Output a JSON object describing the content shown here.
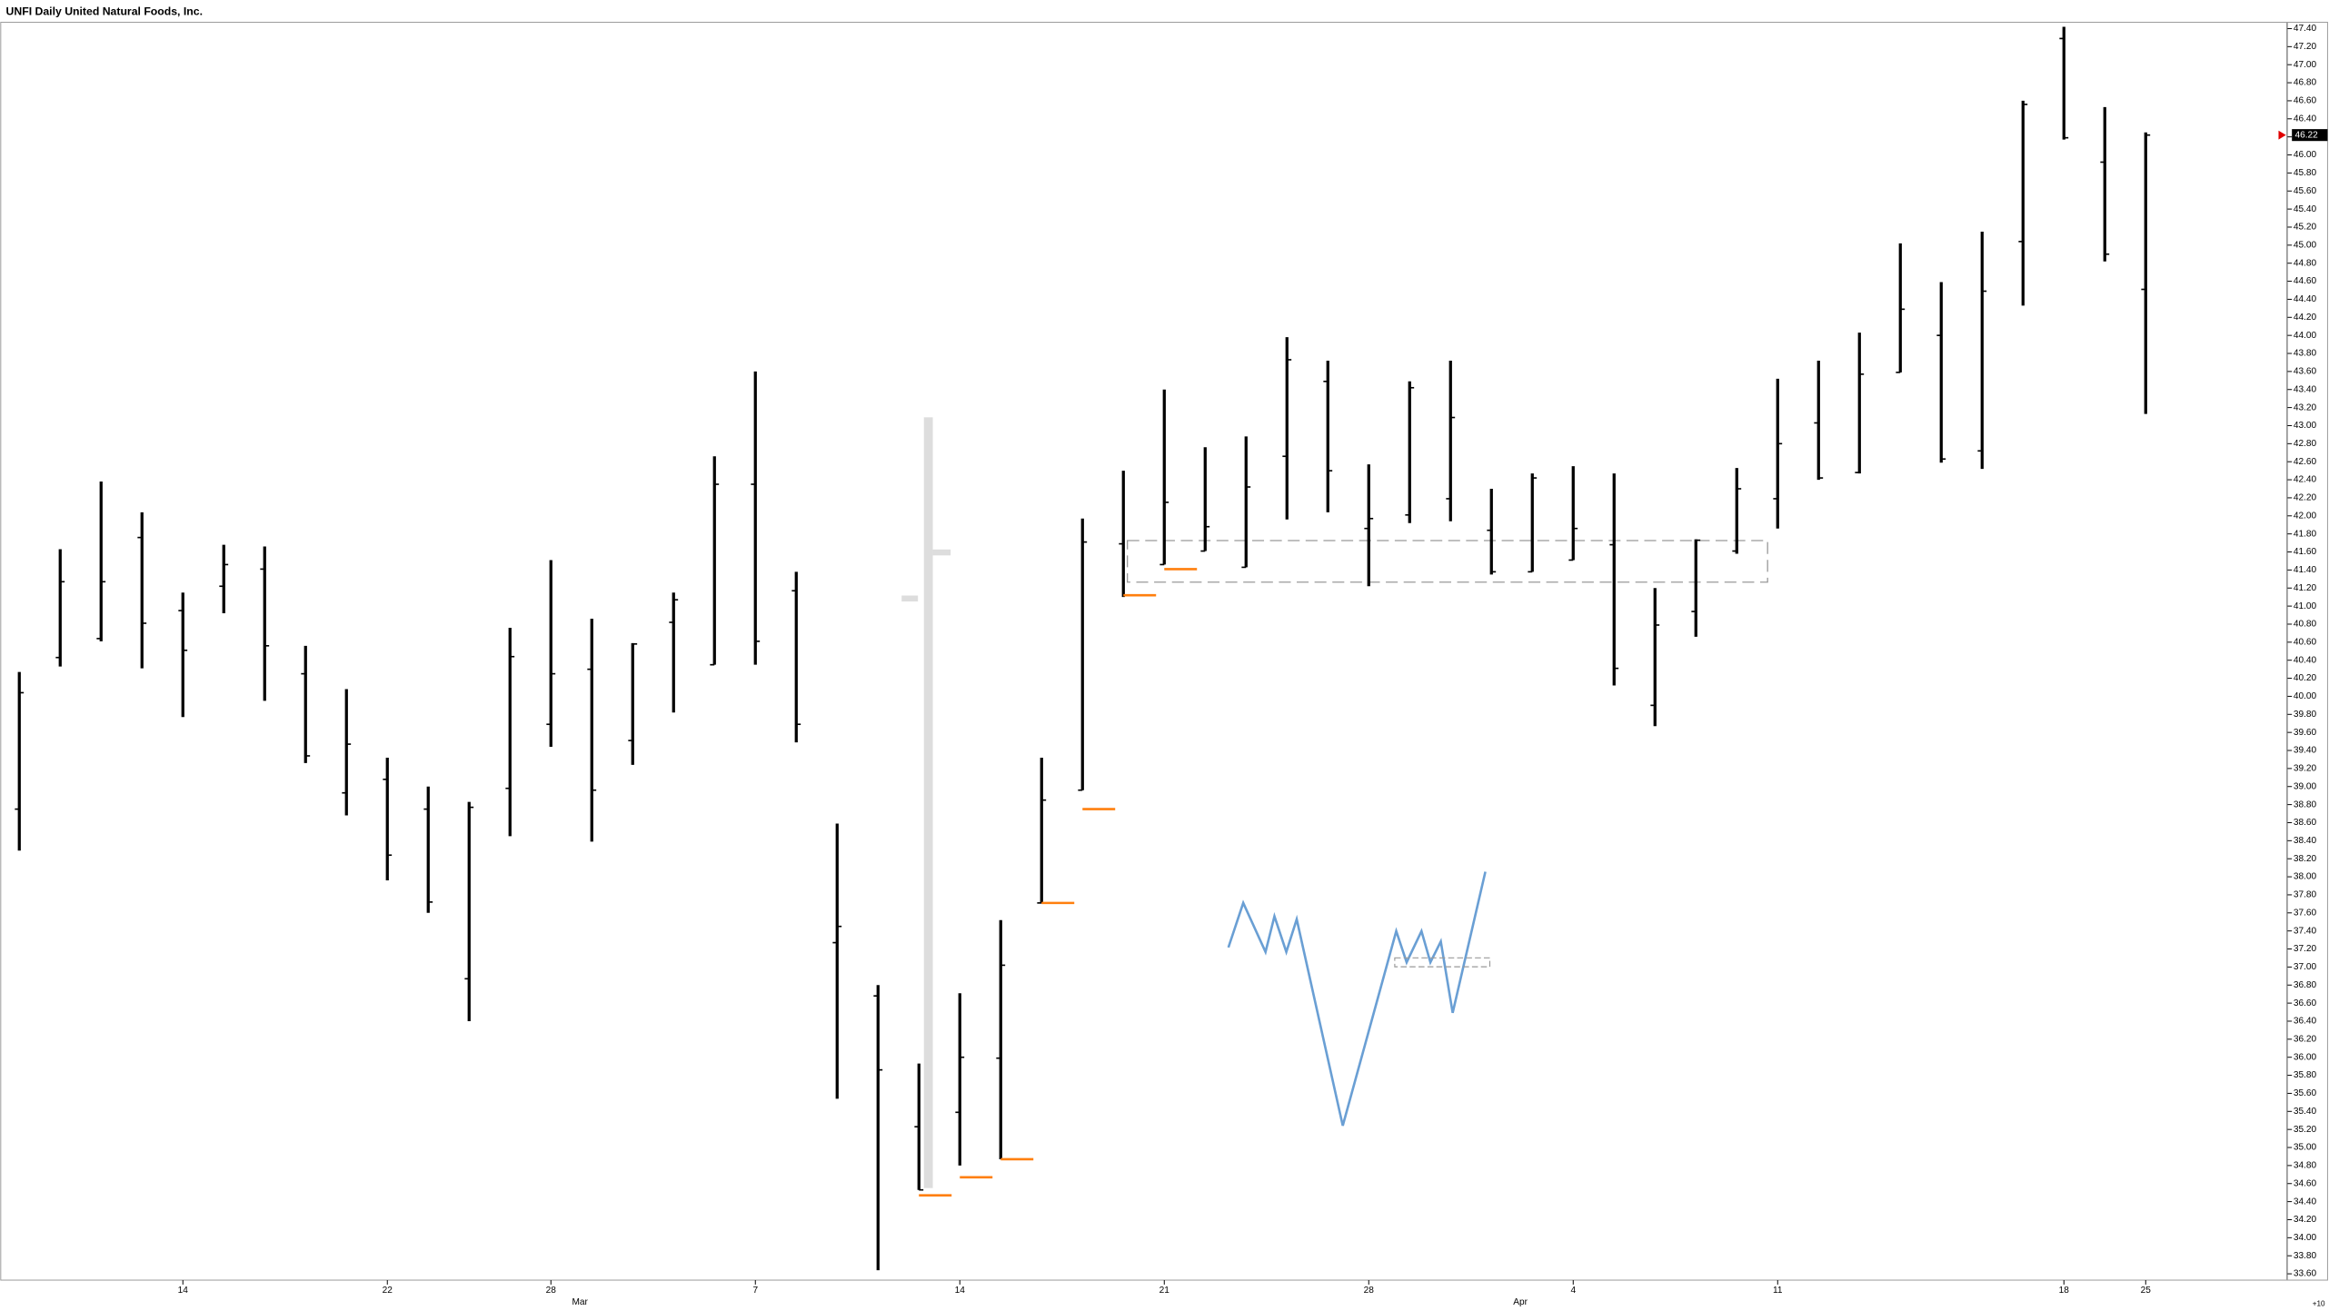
{
  "chart_data": {
    "type": "ohlc",
    "title": "UNFI Daily United Natural Foods, Inc.",
    "categories": [
      null,
      null,
      null,
      null,
      "14",
      null,
      null,
      null,
      null,
      "22",
      null,
      null,
      null,
      "28",
      null,
      null,
      null,
      null,
      "7",
      null,
      null,
      null,
      null,
      "14",
      null,
      null,
      null,
      null,
      "21",
      null,
      null,
      null,
      null,
      "28",
      null,
      null,
      null,
      null,
      "4",
      null,
      null,
      null,
      null,
      "11",
      null,
      null,
      null,
      null,
      null,
      null,
      "18",
      null,
      "25"
    ],
    "months": [
      null,
      null,
      null,
      null,
      null,
      null,
      null,
      null,
      null,
      null,
      null,
      null,
      null,
      null,
      "Mar",
      null,
      null,
      null,
      null,
      null,
      null,
      null,
      null,
      null,
      null,
      null,
      null,
      null,
      null,
      null,
      null,
      null,
      null,
      null,
      null,
      null,
      null,
      "Apr",
      null,
      null,
      null,
      null,
      null,
      null,
      null,
      null,
      null,
      null,
      null,
      null,
      null,
      null,
      null
    ],
    "open": [
      38.75,
      40.43,
      40.64,
      41.76,
      40.95,
      41.22,
      41.41,
      40.25,
      38.93,
      39.08,
      38.75,
      36.87,
      38.98,
      39.69,
      40.3,
      39.51,
      40.82,
      40.35,
      42.35,
      41.17,
      37.27,
      36.68,
      35.23,
      35.39,
      35.99,
      37.71,
      38.96,
      41.69,
      41.46,
      41.61,
      41.43,
      42.66,
      43.49,
      41.86,
      42.01,
      42.19,
      41.84,
      41.38,
      41.51,
      41.68,
      39.9,
      40.94,
      41.61,
      42.19,
      43.03,
      42.48,
      43.59,
      44.0,
      42.72,
      45.04,
      47.29,
      45.92,
      44.51
    ],
    "high": [
      40.27,
      41.63,
      42.38,
      42.04,
      41.15,
      41.68,
      41.66,
      40.56,
      40.08,
      39.32,
      39.0,
      38.83,
      40.76,
      41.51,
      40.86,
      40.59,
      41.15,
      42.66,
      43.6,
      41.38,
      38.59,
      36.8,
      35.93,
      36.71,
      37.52,
      39.32,
      41.97,
      42.5,
      43.4,
      42.76,
      42.88,
      43.98,
      43.72,
      42.57,
      43.49,
      43.72,
      42.3,
      42.47,
      42.55,
      42.47,
      41.2,
      41.74,
      42.53,
      43.52,
      43.72,
      44.03,
      45.02,
      44.59,
      45.15,
      46.6,
      47.42,
      46.53,
      46.25
    ],
    "low": [
      38.29,
      40.33,
      40.61,
      40.31,
      39.77,
      40.92,
      39.95,
      39.26,
      38.68,
      37.96,
      37.6,
      36.4,
      38.45,
      39.44,
      38.39,
      39.24,
      39.82,
      40.35,
      40.35,
      39.49,
      35.54,
      33.64,
      34.53,
      34.8,
      34.87,
      37.71,
      38.96,
      41.1,
      41.46,
      41.61,
      41.43,
      41.96,
      42.04,
      41.22,
      41.92,
      41.94,
      41.35,
      41.38,
      41.51,
      40.12,
      39.67,
      40.66,
      41.58,
      41.86,
      42.4,
      42.47,
      43.59,
      42.59,
      42.52,
      44.33,
      46.17,
      44.82,
      43.13
    ],
    "close": [
      40.04,
      41.27,
      41.27,
      40.81,
      40.51,
      41.46,
      40.56,
      39.34,
      39.47,
      38.24,
      37.72,
      38.77,
      40.44,
      40.25,
      38.96,
      40.58,
      41.07,
      42.35,
      40.61,
      39.69,
      37.45,
      35.86,
      34.53,
      36.0,
      37.02,
      38.85,
      41.71,
      41.12,
      42.15,
      41.88,
      42.32,
      43.73,
      42.5,
      41.97,
      43.42,
      43.09,
      41.38,
      42.42,
      41.86,
      40.31,
      40.79,
      41.73,
      42.3,
      42.8,
      42.42,
      43.57,
      44.29,
      42.63,
      44.49,
      46.56,
      46.19,
      44.9,
      46.22
    ],
    "low_markers": [
      null,
      null,
      null,
      null,
      null,
      null,
      null,
      null,
      null,
      null,
      null,
      null,
      null,
      null,
      null,
      null,
      null,
      null,
      null,
      null,
      null,
      null,
      34.47,
      34.67,
      34.87,
      37.71,
      38.75,
      41.12,
      41.41,
      null,
      null,
      null,
      null,
      null,
      null,
      null,
      null,
      null,
      null,
      null,
      null,
      null,
      null,
      null,
      null,
      null,
      null,
      null,
      null,
      null,
      null,
      null,
      null
    ],
    "color": "#000000",
    "marker_color": "#ff7f0e",
    "last": {
      "value": 46.22,
      "label": "46.22"
    },
    "x_note": "+10",
    "ylim": [
      33.53,
      47.47
    ],
    "yticks": [
      {
        "value": 33.6,
        "label": "33.60"
      },
      {
        "value": 33.8,
        "label": "33.80"
      },
      {
        "value": 34.0,
        "label": "34.00"
      },
      {
        "value": 34.2,
        "label": "34.20"
      },
      {
        "value": 34.4,
        "label": "34.40"
      },
      {
        "value": 34.6,
        "label": "34.60"
      },
      {
        "value": 34.8,
        "label": "34.80"
      },
      {
        "value": 35.0,
        "label": "35.00"
      },
      {
        "value": 35.2,
        "label": "35.20"
      },
      {
        "value": 35.4,
        "label": "35.40"
      },
      {
        "value": 35.6,
        "label": "35.60"
      },
      {
        "value": 35.8,
        "label": "35.80"
      },
      {
        "value": 36.0,
        "label": "36.00"
      },
      {
        "value": 36.2,
        "label": "36.20"
      },
      {
        "value": 36.4,
        "label": "36.40"
      },
      {
        "value": 36.6,
        "label": "36.60"
      },
      {
        "value": 36.8,
        "label": "36.80"
      },
      {
        "value": 37.0,
        "label": "37.00"
      },
      {
        "value": 37.2,
        "label": "37.20"
      },
      {
        "value": 37.4,
        "label": "37.40"
      },
      {
        "value": 37.6,
        "label": "37.60"
      },
      {
        "value": 37.8,
        "label": "37.80"
      },
      {
        "value": 38.0,
        "label": "38.00"
      },
      {
        "value": 38.2,
        "label": "38.20"
      },
      {
        "value": 38.4,
        "label": "38.40"
      },
      {
        "value": 38.6,
        "label": "38.60"
      },
      {
        "value": 38.8,
        "label": "38.80"
      },
      {
        "value": 39.0,
        "label": "39.00"
      },
      {
        "value": 39.2,
        "label": "39.20"
      },
      {
        "value": 39.4,
        "label": "39.40"
      },
      {
        "value": 39.6,
        "label": "39.60"
      },
      {
        "value": 39.8,
        "label": "39.80"
      },
      {
        "value": 40.0,
        "label": "40.00"
      },
      {
        "value": 40.2,
        "label": "40.20"
      },
      {
        "value": 40.4,
        "label": "40.40"
      },
      {
        "value": 40.6,
        "label": "40.60"
      },
      {
        "value": 40.8,
        "label": "40.80"
      },
      {
        "value": 41.0,
        "label": "41.00"
      },
      {
        "value": 41.2,
        "label": "41.20"
      },
      {
        "value": 41.4,
        "label": "41.40"
      },
      {
        "value": 41.6,
        "label": "41.60"
      },
      {
        "value": 41.8,
        "label": "41.80"
      },
      {
        "value": 42.0,
        "label": "42.00"
      },
      {
        "value": 42.2,
        "label": "42.20"
      },
      {
        "value": 42.4,
        "label": "42.40"
      },
      {
        "value": 42.6,
        "label": "42.60"
      },
      {
        "value": 42.8,
        "label": "42.80"
      },
      {
        "value": 43.0,
        "label": "43.00"
      },
      {
        "value": 43.2,
        "label": "43.20"
      },
      {
        "value": 43.4,
        "label": "43.40"
      },
      {
        "value": 43.6,
        "label": "43.60"
      },
      {
        "value": 43.8,
        "label": "43.80"
      },
      {
        "value": 44.0,
        "label": "44.00"
      },
      {
        "value": 44.2,
        "label": "44.20"
      },
      {
        "value": 44.4,
        "label": "44.40"
      },
      {
        "value": 44.6,
        "label": "44.60"
      },
      {
        "value": 44.8,
        "label": "44.80"
      },
      {
        "value": 45.0,
        "label": "45.00"
      },
      {
        "value": 45.2,
        "label": "45.20"
      },
      {
        "value": 45.4,
        "label": "45.40"
      },
      {
        "value": 45.6,
        "label": "45.60"
      },
      {
        "value": 45.8,
        "label": "45.80"
      },
      {
        "value": 46.0,
        "label": "46.00"
      },
      {
        "value": 46.2,
        "label": "46.20"
      },
      {
        "value": 46.4,
        "label": "46.40"
      },
      {
        "value": 46.6,
        "label": "46.60"
      },
      {
        "value": 46.8,
        "label": "46.80"
      },
      {
        "value": 47.0,
        "label": "47.00"
      },
      {
        "value": 47.2,
        "label": "47.20"
      },
      {
        "value": 47.4,
        "label": "47.40"
      }
    ]
  }
}
